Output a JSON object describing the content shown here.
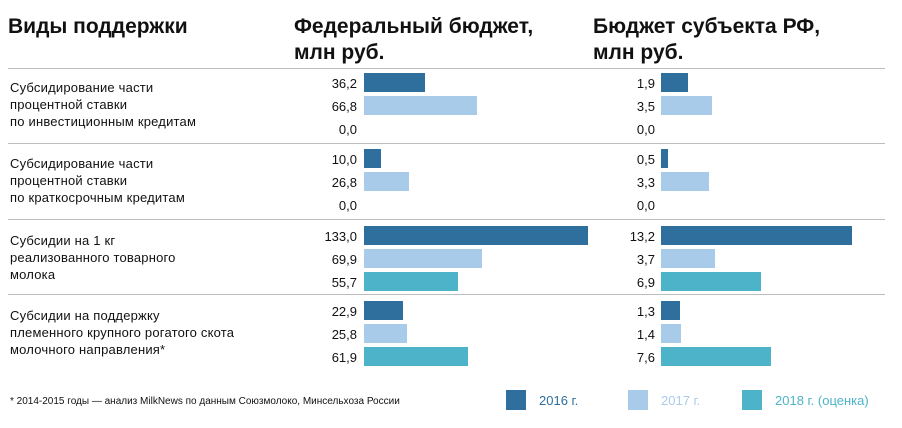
{
  "header": {
    "types": "Виды поддержки",
    "federal": "Федеральный бюджет,\nмлн руб.",
    "regional": "Бюджет субъекта РФ,\nмлн руб."
  },
  "footnote": "* 2014-2015 годы — анализ MilkNews по данным Союзмолоко, Минсельхоза России",
  "colors": {
    "2016 г.": "#2e6f9e",
    "2017 г.": "#a9cbea",
    "2018 г. (оценка)": "#4db3c8"
  },
  "chart_data": {
    "type": "bar",
    "orientation": "horizontal",
    "categories": [
      "Субсидирование части\nпроцентной ставки\nпо инвестиционным кредитам",
      "Субсидирование части\nпроцентной ставки\nпо краткосрочным кредитам",
      "Субсидии на 1 кг\nреализованного товарного\nмолока",
      "Субсидии на поддержку\nплеменного крупного рогатого скота\nмолочного направления*"
    ],
    "series": [
      {
        "name": "2016 г.",
        "color": "#2e6f9e",
        "federal": [
          36.2,
          10.0,
          133.0,
          22.9
        ],
        "regional": [
          1.9,
          0.5,
          13.2,
          1.3
        ],
        "federal_labels": [
          "36,2",
          "10,0",
          "133,0",
          "22,9"
        ],
        "regional_labels": [
          "1,9",
          "0,5",
          "13,2",
          "1,3"
        ]
      },
      {
        "name": "2017 г.",
        "color": "#a9cbea",
        "federal": [
          66.8,
          26.8,
          69.9,
          25.8
        ],
        "regional": [
          3.5,
          3.3,
          3.7,
          1.4
        ],
        "federal_labels": [
          "66,8",
          "26,8",
          "69,9",
          "25,8"
        ],
        "regional_labels": [
          "3,5",
          "3,3",
          "3,7",
          "1,4"
        ]
      },
      {
        "name": "2018 г. (оценка)",
        "color": "#4db3c8",
        "federal": [
          0.0,
          0.0,
          55.7,
          61.9
        ],
        "regional": [
          0.0,
          0.0,
          6.9,
          7.6
        ],
        "federal_labels": [
          "0,0",
          "0,0",
          "55,7",
          "61,9"
        ],
        "regional_labels": [
          "0,0",
          "0,0",
          "6,9",
          "7,6"
        ]
      }
    ],
    "xlim_federal": [
      0,
      133.0
    ],
    "xlim_regional": [
      0,
      13.2
    ],
    "legend": "bottom"
  }
}
